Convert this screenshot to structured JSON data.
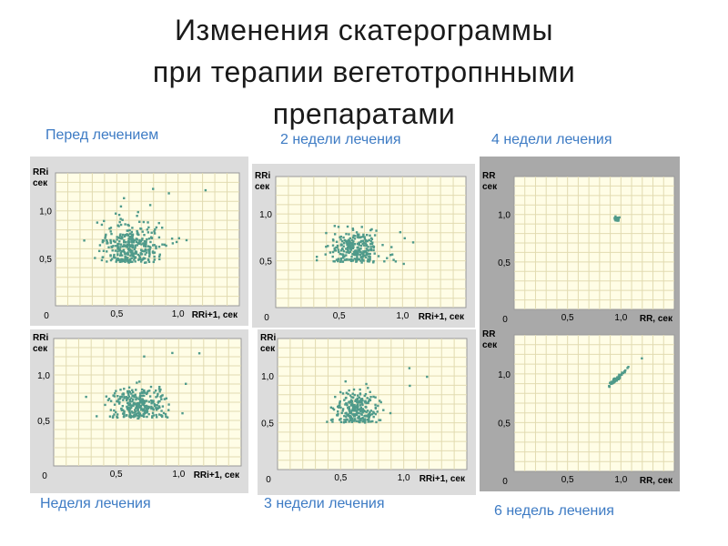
{
  "title": {
    "line1": "Изменения скатерограммы",
    "line2": "при терапии вегетотропнными",
    "line3": "препаратами"
  },
  "colors": {
    "dot": "#4f9a8a",
    "caption": "#3d7bc4",
    "plot_bg": "#fffde6"
  },
  "chart_data": [
    {
      "id": "before",
      "type": "scatter",
      "caption": "Перед лечением",
      "ylabel_1": "RRi",
      "ylabel_2": "сек",
      "xlabel": "RRi+1, сек",
      "xticks": [
        "0,5",
        "1,0"
      ],
      "yticks": [
        "0,5",
        "1,0"
      ],
      "origin": "0",
      "xlim": [
        0,
        1.5
      ],
      "ylim": [
        0,
        1.4
      ],
      "cluster": {
        "cx": 0.62,
        "cy": 0.62,
        "sx": 0.13,
        "sy": 0.12,
        "n": 340,
        "seed": 11,
        "outliers": 12
      }
    },
    {
      "id": "week2",
      "type": "scatter",
      "caption": "2 недели лечения",
      "ylabel_1": "RRi",
      "ylabel_2": "сек",
      "xlabel": "RRi+1, сек",
      "xticks": [
        "0,5",
        "1,0"
      ],
      "yticks": [
        "0,5",
        "1,0"
      ],
      "origin": "0",
      "xlim": [
        0,
        1.5
      ],
      "ylim": [
        0,
        1.4
      ],
      "cluster": {
        "cx": 0.63,
        "cy": 0.62,
        "sx": 0.1,
        "sy": 0.1,
        "n": 260,
        "seed": 23,
        "outliers": 5
      }
    },
    {
      "id": "week4",
      "type": "scatter",
      "caption": "4 недели лечения",
      "ylabel_1": "RR",
      "ylabel_2": "сек",
      "xlabel": "RR, сек",
      "xticks": [
        "0,5",
        "1,0"
      ],
      "yticks": [
        "0,5",
        "1,0"
      ],
      "origin": "0",
      "xlim": [
        0,
        1.5
      ],
      "ylim": [
        0,
        1.4
      ],
      "cluster": {
        "cx": 0.96,
        "cy": 0.95,
        "sx": 0.012,
        "sy": 0.012,
        "n": 40,
        "seed": 37,
        "outliers": 0
      }
    },
    {
      "id": "week1",
      "type": "scatter",
      "caption": "Неделя лечения",
      "ylabel_1": "RRi",
      "ylabel_2": "сек",
      "xlabel": "RRi+1, сек",
      "xticks": [
        "0,5",
        "1,0"
      ],
      "yticks": [
        "0,5",
        "1,0"
      ],
      "origin": "0",
      "xlim": [
        0,
        1.5
      ],
      "ylim": [
        0,
        1.4
      ],
      "cluster": {
        "cx": 0.68,
        "cy": 0.66,
        "sx": 0.12,
        "sy": 0.1,
        "n": 300,
        "seed": 41,
        "outliers": 6
      }
    },
    {
      "id": "week3",
      "type": "scatter",
      "caption": "3 недели лечения",
      "ylabel_1": "RRi",
      "ylabel_2": "сек",
      "xlabel": "RRi+1, сек",
      "xticks": [
        "0,5",
        "1,0"
      ],
      "yticks": [
        "0,5",
        "1,0"
      ],
      "origin": "0",
      "xlim": [
        0,
        1.5
      ],
      "ylim": [
        0,
        1.4
      ],
      "cluster": {
        "cx": 0.63,
        "cy": 0.64,
        "sx": 0.09,
        "sy": 0.1,
        "n": 260,
        "seed": 53,
        "outliers": 4
      }
    },
    {
      "id": "week6",
      "type": "scatter",
      "caption": "6 недель лечения",
      "ylabel_1": "RR",
      "ylabel_2": "сек",
      "xlabel": "RR, сек",
      "xticks": [
        "0,5",
        "1,0"
      ],
      "yticks": [
        "0,5",
        "1,0"
      ],
      "origin": "0",
      "xlim": [
        0,
        1.5
      ],
      "ylim": [
        0,
        1.4
      ],
      "cluster": {
        "cx": 0.96,
        "cy": 0.95,
        "sx": 0.04,
        "sy": 0.04,
        "n": 60,
        "seed": 67,
        "outliers": 1,
        "diagonal": true
      }
    }
  ]
}
